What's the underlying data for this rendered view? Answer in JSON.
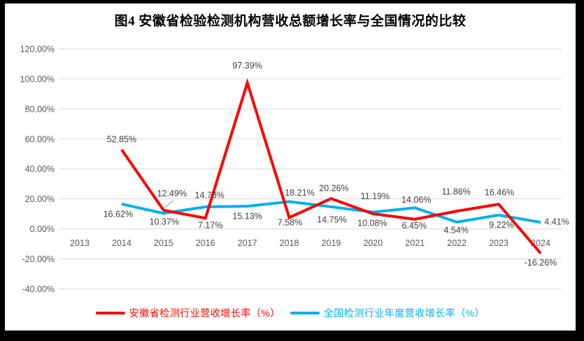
{
  "chart_data": {
    "type": "line",
    "title": "图4 安徽省检验检测机构营收总额增长率与全国情况的比较",
    "categories": [
      "2013",
      "2014",
      "2015",
      "2016",
      "2017",
      "2018",
      "2019",
      "2020",
      "2021",
      "2022",
      "2023",
      "2024"
    ],
    "series": [
      {
        "name": "安徽省检测行业营收增长率（%）",
        "color": "#FE0000",
        "values": [
          null,
          52.85,
          12.49,
          7.17,
          97.39,
          7.58,
          20.26,
          10.08,
          6.45,
          11.86,
          16.46,
          -16.26
        ],
        "labels": [
          null,
          "52.85%",
          "12.49%",
          "7.17%",
          "97.39%",
          "7.58%",
          "20.26%",
          "10.08%",
          "6.45%",
          "11.86%",
          "16.46%",
          "-16.26%"
        ],
        "label_offsets": [
          null,
          [
            0,
            -15
          ],
          [
            12,
            -24
          ],
          [
            7,
            10
          ],
          [
            0,
            -25
          ],
          [
            1,
            7
          ],
          [
            4,
            -15
          ],
          [
            -1,
            13
          ],
          [
            -1,
            9
          ],
          [
            -1,
            -28
          ],
          [
            1,
            -17
          ],
          [
            0,
            13
          ]
        ],
        "leader_point_index": 2
      },
      {
        "name": "全国检测行业年度营收增长率（%）",
        "color": "#00B0F0",
        "values": [
          null,
          16.62,
          10.37,
          14.73,
          15.13,
          18.21,
          14.75,
          11.19,
          14.06,
          4.54,
          9.22,
          4.41
        ],
        "labels": [
          null,
          "16.62%",
          "10.37%",
          "14.73%",
          "15.13%",
          "18.21%",
          "14.75%",
          "11.19%",
          "14.06%",
          "4.54%",
          "9.22%",
          "4.41%"
        ],
        "label_offsets": [
          null,
          [
            -5,
            14
          ],
          [
            1,
            12
          ],
          [
            6,
            -17
          ],
          [
            0,
            14
          ],
          [
            15,
            -13
          ],
          [
            1,
            18
          ],
          [
            3,
            -23
          ],
          [
            2,
            -12
          ],
          [
            -1,
            11
          ],
          [
            4,
            14
          ],
          [
            23,
            -1
          ]
        ]
      }
    ],
    "y_axis": {
      "min": -40,
      "max": 120,
      "step": 20,
      "tick_labels": [
        "120.00%",
        "100.00%",
        "80.00%",
        "60.00%",
        "40.00%",
        "20.00%",
        "0.00%",
        "-20.00%",
        "-40.00%"
      ]
    },
    "x_axis": {
      "tick_labels": [
        "2013",
        "2014",
        "2015",
        "2016",
        "2017",
        "2018",
        "2019",
        "2020",
        "2021",
        "2022",
        "2023",
        "2024"
      ]
    },
    "grid": true,
    "legend_position": "bottom",
    "colors": {
      "grid": "#D9D9D9",
      "axis_text": "#595959",
      "data_label": "#404040",
      "leader_line": "#A6A6A6",
      "frame": "#000000",
      "background": "#FFFFFF"
    }
  }
}
